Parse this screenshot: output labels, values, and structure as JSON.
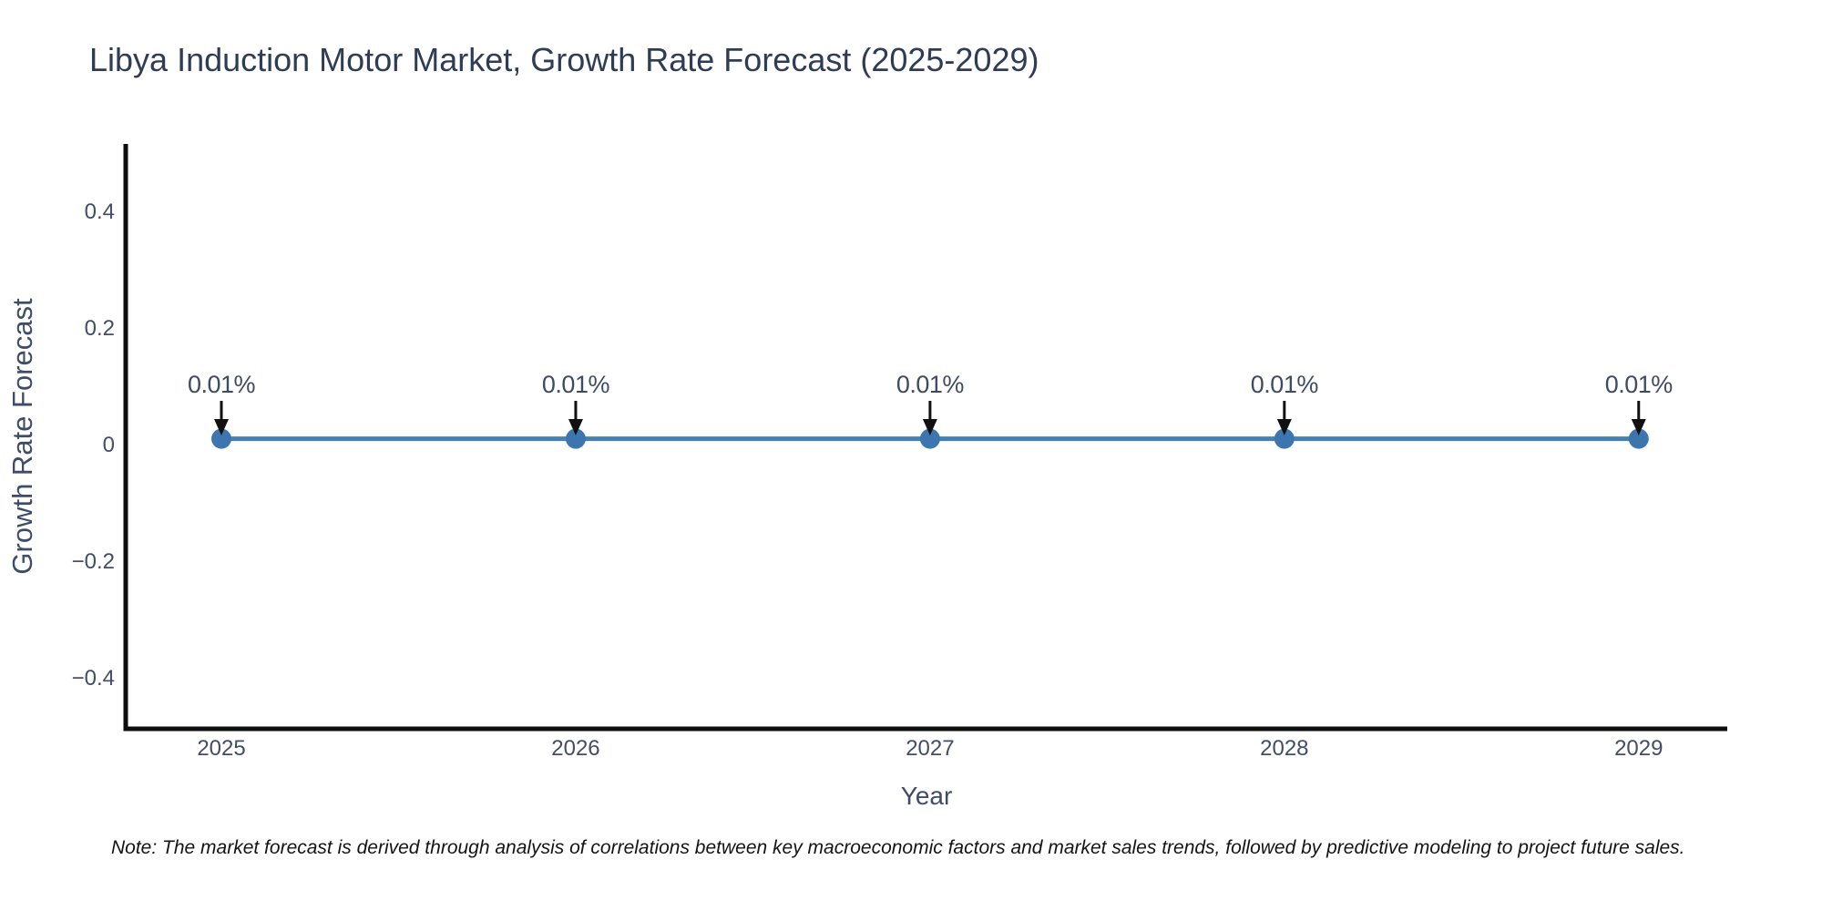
{
  "note": {
    "text": "Note: The market forecast is derived through analysis of correlations between key macroeconomic factors and market sales trends, followed by predictive modeling to project future sales."
  },
  "colors": {
    "title_text": "#2e3c56",
    "axis_label_text": "#3e4c68",
    "tick_text": "#424e66",
    "annotation_text": "#3f4b62",
    "line": "#4681b2",
    "marker": "#3d76af",
    "spine": "#0d0d0d",
    "arrow": "#111111",
    "background": "#ffffff"
  },
  "chart_data": {
    "type": "line",
    "title": "Libya Induction Motor Market, Growth Rate Forecast (2025-2029)",
    "xlabel": "Year",
    "ylabel": "Growth Rate Forecast",
    "x": [
      2025,
      2026,
      2027,
      2028,
      2029
    ],
    "x_tick_labels": [
      "2025",
      "2026",
      "2027",
      "2028",
      "2029"
    ],
    "series": [
      {
        "name": "Growth Rate Forecast",
        "values": [
          0.01,
          0.01,
          0.01,
          0.01,
          0.01
        ]
      }
    ],
    "point_labels": [
      "0.01%",
      "0.01%",
      "0.01%",
      "0.01%",
      "0.01%"
    ],
    "y_ticks": [
      0.4,
      0.2,
      0,
      -0.2,
      -0.4
    ],
    "y_tick_labels": [
      "0.4",
      "0.2",
      "0",
      "−0.2",
      "−0.4"
    ],
    "xlim": [
      2024.73,
      2029.25
    ],
    "ylim": [
      -0.4875,
      0.5156
    ],
    "grid": false,
    "legend_position": "none",
    "marker_style": "circle",
    "annotation_style": "arrow-down"
  }
}
